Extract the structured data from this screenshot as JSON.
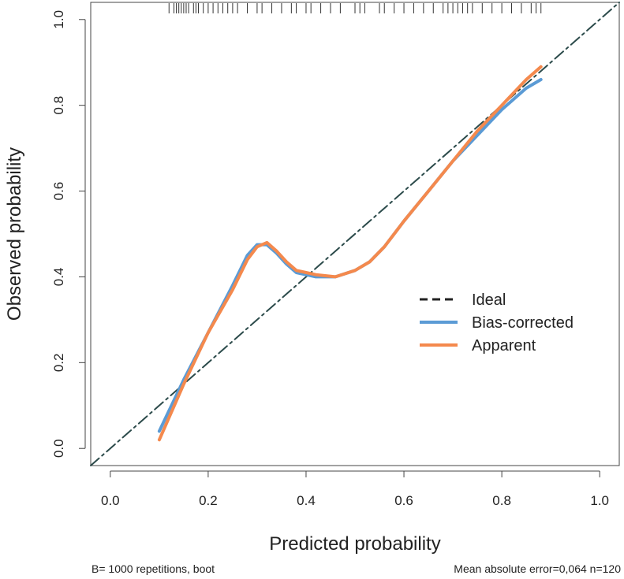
{
  "chart_data": {
    "type": "line",
    "title": "",
    "xlabel": "Predicted probability",
    "ylabel": "Observed probability",
    "xlim": [
      -0.04,
      1.04
    ],
    "ylim": [
      -0.04,
      1.04
    ],
    "xticks": [
      0.0,
      0.2,
      0.4,
      0.6,
      0.8,
      1.0
    ],
    "yticks": [
      0.0,
      0.2,
      0.4,
      0.6,
      0.8,
      1.0
    ],
    "x_tick_labels": [
      "0.0",
      "0.2",
      "0.4",
      "0.6",
      "0.8",
      "1.0"
    ],
    "y_tick_labels": [
      "0.0",
      "0.2",
      "0.4",
      "0.6",
      "0.8",
      "1.0"
    ],
    "grid": false,
    "legend_position": "right",
    "series": [
      {
        "name": "Ideal",
        "style": "dashed",
        "color": "#2b4a4a",
        "x": [
          -0.04,
          1.04
        ],
        "y": [
          -0.04,
          1.04
        ]
      },
      {
        "name": "Bias-corrected",
        "style": "solid",
        "color": "#5b9bd5",
        "x": [
          0.1,
          0.15,
          0.2,
          0.25,
          0.28,
          0.3,
          0.32,
          0.34,
          0.36,
          0.38,
          0.4,
          0.42,
          0.46,
          0.5,
          0.53,
          0.56,
          0.6,
          0.65,
          0.7,
          0.75,
          0.8,
          0.85,
          0.88
        ],
        "y": [
          0.04,
          0.16,
          0.27,
          0.38,
          0.45,
          0.475,
          0.475,
          0.455,
          0.43,
          0.41,
          0.405,
          0.4,
          0.4,
          0.415,
          0.435,
          0.47,
          0.53,
          0.6,
          0.67,
          0.73,
          0.79,
          0.84,
          0.86
        ]
      },
      {
        "name": "Apparent",
        "style": "solid",
        "color": "#f4894d",
        "x": [
          0.1,
          0.15,
          0.2,
          0.25,
          0.28,
          0.3,
          0.32,
          0.34,
          0.36,
          0.38,
          0.4,
          0.42,
          0.46,
          0.5,
          0.53,
          0.56,
          0.6,
          0.65,
          0.7,
          0.75,
          0.8,
          0.85,
          0.88
        ],
        "y": [
          0.02,
          0.15,
          0.27,
          0.37,
          0.44,
          0.47,
          0.48,
          0.46,
          0.435,
          0.415,
          0.41,
          0.405,
          0.4,
          0.415,
          0.435,
          0.47,
          0.53,
          0.6,
          0.67,
          0.74,
          0.8,
          0.86,
          0.89
        ]
      }
    ],
    "rug": [
      0.12,
      0.13,
      0.135,
      0.14,
      0.145,
      0.15,
      0.155,
      0.16,
      0.17,
      0.175,
      0.18,
      0.19,
      0.2,
      0.21,
      0.22,
      0.23,
      0.24,
      0.25,
      0.26,
      0.28,
      0.3,
      0.31,
      0.33,
      0.35,
      0.37,
      0.38,
      0.4,
      0.41,
      0.43,
      0.45,
      0.47,
      0.5,
      0.51,
      0.52,
      0.55,
      0.56,
      0.58,
      0.6,
      0.62,
      0.64,
      0.66,
      0.68,
      0.69,
      0.7,
      0.71,
      0.72,
      0.73,
      0.74,
      0.76,
      0.78,
      0.8,
      0.82,
      0.84,
      0.86,
      0.87,
      0.88
    ],
    "footer_left": "B= 1000 repetitions, boot",
    "footer_right": "Mean absolute error=0,064 n=120"
  }
}
